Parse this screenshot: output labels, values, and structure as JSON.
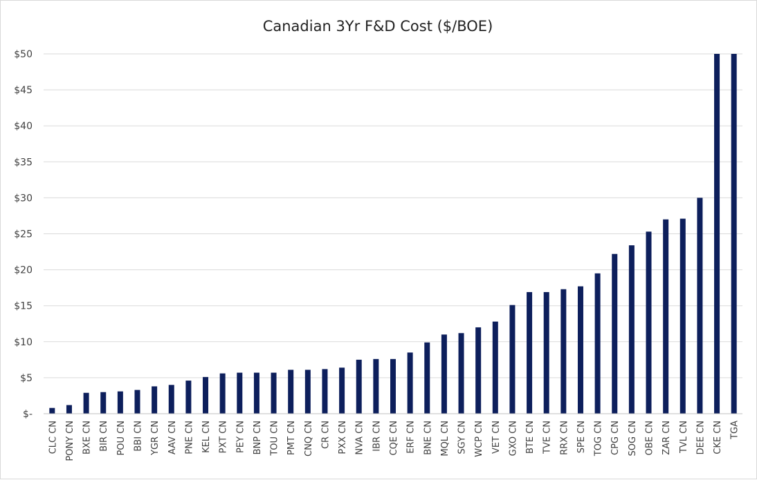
{
  "chart_data": {
    "type": "bar",
    "title": "Canadian 3Yr F&D Cost ($/BOE)",
    "xlabel": "",
    "ylabel": "",
    "ylim": [
      0,
      50
    ],
    "y_ticks": [
      0,
      5,
      10,
      15,
      20,
      25,
      30,
      35,
      40,
      45,
      50
    ],
    "y_tick_labels": [
      "$-",
      "$5",
      "$10",
      "$15",
      "$20",
      "$25",
      "$30",
      "$35",
      "$40",
      "$45",
      "$50"
    ],
    "grid": true,
    "legend": "none",
    "bar_color": "#0d1f5c",
    "categories": [
      "CLC CN",
      "PONY CN",
      "BXE CN",
      "BIR CN",
      "POU CN",
      "BBI CN",
      "YGR CN",
      "AAV CN",
      "PNE CN",
      "KEL CN",
      "PXT CN",
      "PEY CN",
      "BNP CN",
      "TOU CN",
      "PMT CN",
      "CNQ CN",
      "CR CN",
      "PXX CN",
      "NVA CN",
      "IBR CN",
      "CQE CN",
      "ERF CN",
      "BNE CN",
      "MQL CN",
      "SGY CN",
      "WCP CN",
      "VET CN",
      "GXO CN",
      "BTE CN",
      "TVE CN",
      "RRX CN",
      "SPE CN",
      "TOG CN",
      "CPG CN",
      "SOG CN",
      "OBE CN",
      "ZAR CN",
      "TVL CN",
      "DEE CN",
      "CKE CN",
      "TGA"
    ],
    "values": [
      0.8,
      1.2,
      2.9,
      3.0,
      3.1,
      3.3,
      3.8,
      4.0,
      4.6,
      5.1,
      5.6,
      5.7,
      5.7,
      5.7,
      6.1,
      6.1,
      6.2,
      6.4,
      7.5,
      7.6,
      7.6,
      8.5,
      9.9,
      11.0,
      11.2,
      12.0,
      12.8,
      15.1,
      16.9,
      16.9,
      17.3,
      17.7,
      19.5,
      22.2,
      23.4,
      25.3,
      27.0,
      27.1,
      30.0,
      50.0,
      50.0
    ]
  }
}
